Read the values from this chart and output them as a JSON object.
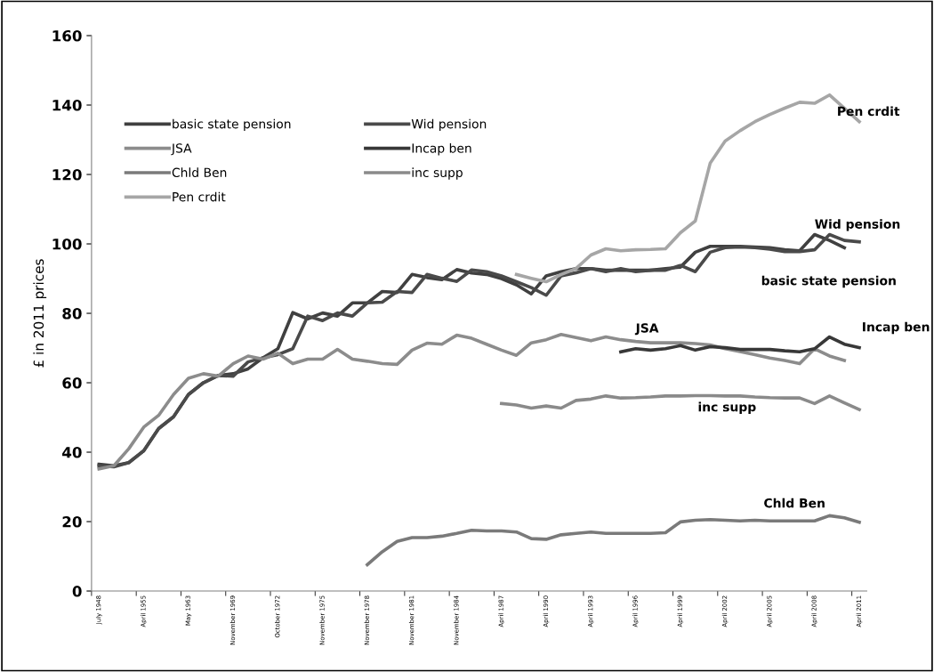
{
  "chart_data": {
    "type": "line",
    "ylabel": "£ in 2011 prices",
    "categories": [
      "July 1948",
      null,
      null,
      "April 1955",
      null,
      null,
      "May 1963",
      null,
      null,
      "November 1969",
      null,
      null,
      "October 1972",
      null,
      null,
      "November 1975",
      null,
      null,
      "November 1978",
      null,
      null,
      "November 1981",
      null,
      null,
      "November 1984",
      null,
      null,
      "April 1987",
      null,
      null,
      "April 1990",
      null,
      null,
      "April 1993",
      null,
      null,
      "April 1996",
      null,
      null,
      "April 1999",
      null,
      null,
      "April 2002",
      null,
      null,
      "April 2005",
      null,
      null,
      "April 2008",
      null,
      null,
      "April 2011"
    ],
    "ylim": [
      0,
      160
    ],
    "yticks": [
      0,
      20,
      40,
      60,
      80,
      100,
      120,
      140,
      160
    ],
    "grid": false,
    "legend": "top left",
    "marker": "none",
    "line_style": "solid",
    "series": [
      {
        "name": "basic state pension",
        "color": "#404040",
        "values": [
          36.5,
          36.1,
          37.0,
          40.4,
          46.8,
          50.2,
          56.6,
          60.0,
          62.1,
          62.6,
          64.0,
          67.2,
          69.8,
          80.2,
          78.4,
          80.1,
          79.2,
          83.0,
          83.0,
          86.3,
          86.0,
          91.2,
          90.3,
          89.7,
          92.6,
          91.6,
          91.2,
          90.0,
          88.2,
          85.6,
          90.8,
          92.0,
          92.9,
          92.9,
          92.4,
          92.4,
          92.4,
          92.4,
          92.9,
          93.3,
          97.6,
          99.3,
          99.3,
          99.3,
          99.1,
          98.9,
          98.3,
          98.0,
          102.7,
          101.0,
          98.9,
          null
        ]
      },
      {
        "name": "Wid pension",
        "color": "#4a4a4a",
        "values": [
          36.0,
          35.8,
          37.0,
          40.4,
          46.8,
          50.2,
          56.6,
          60.0,
          62.1,
          61.9,
          66.0,
          67.2,
          68.1,
          69.8,
          79.2,
          77.9,
          80.1,
          79.2,
          83.0,
          83.2,
          86.3,
          86.0,
          91.2,
          90.1,
          89.2,
          92.5,
          92.0,
          90.8,
          89.1,
          87.4,
          85.2,
          90.8,
          91.7,
          92.9,
          92.0,
          92.9,
          92.0,
          92.4,
          92.4,
          93.8,
          92.0,
          97.6,
          98.9,
          99.1,
          98.9,
          98.5,
          97.8,
          97.8,
          98.3,
          102.7,
          101.0,
          100.6
        ]
      },
      {
        "name": "JSA",
        "color": "#8c8c8c",
        "values": [
          35.2,
          36.1,
          41.0,
          47.2,
          50.6,
          56.6,
          61.3,
          62.6,
          61.9,
          65.5,
          67.7,
          66.8,
          68.5,
          65.5,
          66.8,
          66.8,
          69.6,
          66.8,
          66.2,
          65.5,
          65.3,
          69.4,
          71.4,
          71.1,
          73.7,
          72.8,
          71.1,
          69.4,
          67.9,
          71.5,
          72.4,
          73.9,
          73.0,
          72.1,
          73.2,
          72.4,
          71.9,
          71.5,
          71.5,
          71.5,
          71.3,
          70.9,
          69.8,
          69.0,
          68.1,
          67.1,
          66.4,
          65.5,
          69.8,
          67.7,
          66.4,
          null
        ]
      },
      {
        "name": "Incap ben",
        "color": "#383838",
        "values": [
          null,
          null,
          null,
          null,
          null,
          null,
          null,
          null,
          null,
          null,
          null,
          null,
          null,
          null,
          null,
          null,
          null,
          null,
          null,
          null,
          null,
          null,
          null,
          null,
          null,
          null,
          null,
          null,
          null,
          null,
          null,
          null,
          null,
          null,
          null,
          68.9,
          69.8,
          69.4,
          69.8,
          70.7,
          69.4,
          70.4,
          70.1,
          69.6,
          69.6,
          69.6,
          69.2,
          68.9,
          69.8,
          73.2,
          71.1,
          70.1
        ]
      },
      {
        "name": "Chld Ben",
        "color": "#7a7a7a",
        "values": [
          null,
          null,
          null,
          null,
          null,
          null,
          null,
          null,
          null,
          null,
          null,
          null,
          null,
          null,
          null,
          null,
          null,
          null,
          7.6,
          11.3,
          14.3,
          15.4,
          15.4,
          15.8,
          16.6,
          17.5,
          17.3,
          17.3,
          17.0,
          15.1,
          14.9,
          16.2,
          16.6,
          17.0,
          16.6,
          16.6,
          16.6,
          16.6,
          16.8,
          19.9,
          20.4,
          20.6,
          20.4,
          20.2,
          20.4,
          20.2,
          20.2,
          20.2,
          20.2,
          21.7,
          21.1,
          19.8
        ]
      },
      {
        "name": "inc supp",
        "color": "#8a8a8a",
        "values": [
          null,
          null,
          null,
          null,
          null,
          null,
          null,
          null,
          null,
          null,
          null,
          null,
          null,
          null,
          null,
          null,
          null,
          null,
          null,
          null,
          null,
          null,
          null,
          null,
          null,
          null,
          null,
          54.0,
          53.6,
          52.7,
          53.3,
          52.7,
          54.9,
          55.3,
          56.2,
          55.6,
          55.7,
          55.9,
          56.2,
          56.2,
          56.3,
          56.3,
          56.2,
          56.2,
          55.9,
          55.7,
          55.6,
          55.6,
          54.0,
          56.2,
          54.2,
          52.3
        ]
      },
      {
        "name": "Pen crdit",
        "color": "#a6a6a6",
        "values": [
          null,
          null,
          null,
          null,
          null,
          null,
          null,
          null,
          null,
          null,
          null,
          null,
          null,
          null,
          null,
          null,
          null,
          null,
          null,
          null,
          null,
          null,
          null,
          null,
          null,
          null,
          null,
          null,
          91.2,
          90.1,
          89.1,
          91.2,
          92.9,
          96.8,
          98.6,
          98.0,
          98.3,
          98.4,
          98.6,
          103.2,
          106.6,
          123.3,
          129.6,
          132.6,
          135.2,
          137.3,
          139.1,
          140.8,
          140.5,
          142.9,
          139.1,
          135.2
        ]
      }
    ]
  }
}
